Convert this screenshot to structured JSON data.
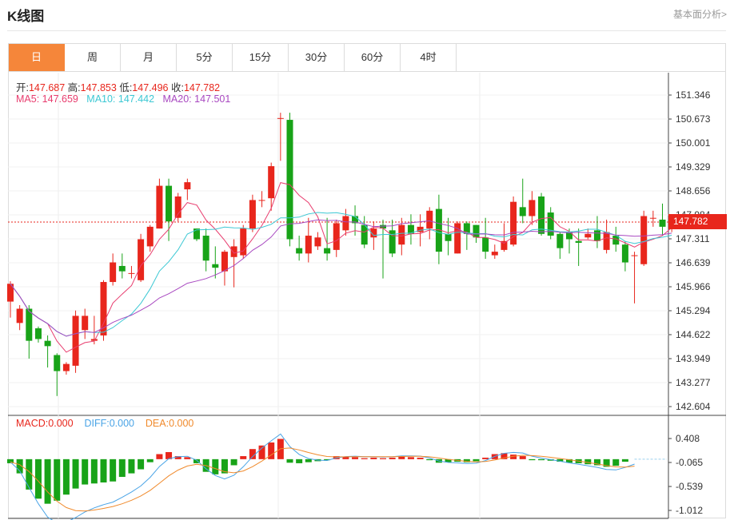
{
  "header": {
    "title": "K线图",
    "link": "基本面分析>"
  },
  "tabs": [
    {
      "label": "日",
      "active": true
    },
    {
      "label": "周",
      "active": false
    },
    {
      "label": "月",
      "active": false
    },
    {
      "label": "5分",
      "active": false
    },
    {
      "label": "15分",
      "active": false
    },
    {
      "label": "30分",
      "active": false
    },
    {
      "label": "60分",
      "active": false
    },
    {
      "label": "4时",
      "active": false
    }
  ],
  "ohlc_info": {
    "open_label": "开:",
    "open": "147.687",
    "high_label": "高:",
    "high": "147.853",
    "low_label": "低:",
    "low": "147.496",
    "close_label": "收:",
    "close": "147.782"
  },
  "ma_info": {
    "ma5_label": "MA5:",
    "ma5": "147.659",
    "ma10_label": "MA10:",
    "ma10": "147.442",
    "ma20_label": "MA20:",
    "ma20": "147.501"
  },
  "macd_info": {
    "macd_label": "MACD:",
    "macd": "0.000",
    "diff_label": "DIFF:",
    "diff": "0.000",
    "dea_label": "DEA:",
    "dea": "0.000"
  },
  "current_price": "147.782",
  "colors": {
    "up": "#e8261c",
    "down": "#18a318",
    "ma5": "#e83c6e",
    "ma10": "#3cc8d4",
    "ma20": "#a848c0",
    "diff": "#4aa4e6",
    "dea": "#f08a2c",
    "accent": "#f5863a"
  },
  "chart_data": {
    "type": "candlestick",
    "price_axis_ticks": [
      "151.346",
      "150.673",
      "150.001",
      "149.329",
      "148.656",
      "147.984",
      "147.311",
      "146.639",
      "145.966",
      "145.294",
      "144.622",
      "143.949",
      "143.277",
      "142.604"
    ],
    "macd_axis_ticks": [
      "0.408",
      "-0.065",
      "-0.539",
      "-1.012"
    ],
    "ylim": [
      142.604,
      151.346
    ],
    "macd_ylim": [
      -1.012,
      0.408
    ],
    "candles": [
      [
        145.55,
        146.05,
        145.1,
        146.12
      ],
      [
        144.95,
        145.35,
        144.75,
        145.45
      ],
      [
        145.35,
        144.45,
        143.95,
        145.45
      ],
      [
        144.8,
        144.5,
        144.4,
        144.85
      ],
      [
        144.45,
        144.3,
        143.7,
        144.6
      ],
      [
        144.05,
        143.6,
        142.9,
        144.1
      ],
      [
        143.6,
        143.8,
        143.5,
        143.85
      ],
      [
        143.75,
        145.15,
        143.55,
        145.3
      ],
      [
        144.75,
        145.15,
        144.5,
        145.35
      ],
      [
        144.45,
        144.5,
        144.35,
        145.15
      ],
      [
        144.6,
        146.1,
        144.45,
        146.15
      ],
      [
        146.1,
        146.65,
        146.0,
        146.9
      ],
      [
        146.55,
        146.4,
        146.2,
        146.9
      ],
      [
        146.35,
        146.35,
        146.2,
        146.55
      ],
      [
        146.15,
        147.3,
        146.1,
        147.45
      ],
      [
        147.1,
        147.65,
        146.95,
        147.7
      ],
      [
        147.6,
        148.8,
        147.6,
        149.0
      ],
      [
        148.8,
        147.8,
        147.25,
        149.0
      ],
      [
        147.9,
        148.5,
        147.8,
        148.6
      ],
      [
        148.7,
        148.9,
        148.4,
        149.0
      ],
      [
        147.6,
        147.3,
        147.25,
        147.6
      ],
      [
        147.4,
        146.7,
        146.4,
        147.6
      ],
      [
        146.6,
        146.5,
        146.2,
        147.1
      ],
      [
        146.4,
        146.95,
        146.0,
        147.0
      ],
      [
        146.8,
        147.1,
        145.95,
        147.3
      ],
      [
        146.85,
        147.6,
        146.75,
        147.7
      ],
      [
        147.6,
        148.4,
        147.5,
        148.55
      ],
      [
        148.4,
        148.4,
        148.2,
        148.65
      ],
      [
        148.45,
        149.35,
        148.1,
        149.45
      ],
      [
        150.7,
        150.7,
        149.5,
        150.85
      ],
      [
        150.65,
        147.3,
        147.1,
        150.85
      ],
      [
        147.05,
        146.9,
        146.7,
        147.4
      ],
      [
        146.9,
        147.4,
        146.65,
        147.9
      ],
      [
        147.1,
        147.35,
        147.0,
        147.5
      ],
      [
        147.05,
        146.9,
        146.7,
        147.9
      ],
      [
        147.0,
        147.75,
        146.8,
        147.85
      ],
      [
        147.55,
        147.95,
        147.4,
        148.15
      ],
      [
        147.95,
        147.75,
        147.4,
        148.25
      ],
      [
        147.7,
        147.15,
        147.05,
        147.95
      ],
      [
        147.35,
        147.6,
        147.0,
        147.8
      ],
      [
        147.7,
        147.6,
        146.2,
        147.85
      ],
      [
        147.55,
        146.9,
        146.8,
        147.85
      ],
      [
        147.15,
        147.7,
        146.85,
        147.9
      ],
      [
        147.7,
        147.45,
        147.15,
        148.0
      ],
      [
        147.5,
        147.65,
        147.1,
        148.0
      ],
      [
        147.6,
        148.1,
        147.3,
        148.2
      ],
      [
        148.15,
        146.95,
        146.6,
        148.55
      ],
      [
        147.45,
        147.25,
        146.85,
        147.9
      ],
      [
        146.9,
        147.75,
        146.9,
        147.8
      ],
      [
        147.75,
        147.45,
        147.0,
        147.8
      ],
      [
        147.7,
        147.35,
        147.2,
        147.7
      ],
      [
        147.35,
        146.95,
        146.75,
        147.9
      ],
      [
        146.85,
        146.95,
        146.75,
        147.15
      ],
      [
        147.0,
        147.25,
        146.95,
        147.75
      ],
      [
        147.15,
        148.35,
        147.1,
        148.5
      ],
      [
        148.2,
        147.95,
        147.75,
        149.0
      ],
      [
        147.95,
        148.4,
        147.7,
        148.65
      ],
      [
        148.5,
        147.45,
        147.4,
        148.6
      ],
      [
        148.05,
        147.4,
        147.3,
        148.2
      ],
      [
        147.45,
        147.05,
        146.75,
        147.5
      ],
      [
        147.5,
        147.3,
        146.9,
        147.6
      ],
      [
        147.25,
        147.2,
        146.55,
        147.6
      ],
      [
        147.35,
        147.45,
        147.3,
        147.6
      ],
      [
        147.55,
        147.25,
        147.05,
        147.95
      ],
      [
        147.0,
        147.5,
        146.9,
        147.85
      ],
      [
        147.4,
        147.15,
        146.95,
        147.65
      ],
      [
        147.15,
        146.65,
        146.4,
        147.25
      ],
      [
        146.85,
        146.85,
        145.5,
        146.95
      ],
      [
        146.6,
        147.95,
        146.55,
        148.1
      ],
      [
        147.9,
        147.9,
        147.65,
        148.1
      ],
      [
        147.85,
        147.65,
        147.4,
        148.3
      ],
      [
        147.69,
        147.78,
        147.5,
        147.85
      ]
    ],
    "macd_bars": [
      -0.08,
      -0.28,
      -0.6,
      -0.78,
      -0.88,
      -0.82,
      -0.7,
      -0.58,
      -0.5,
      -0.48,
      -0.46,
      -0.44,
      -0.35,
      -0.28,
      -0.2,
      -0.06,
      0.1,
      0.14,
      0.06,
      0.04,
      -0.08,
      -0.25,
      -0.3,
      -0.28,
      -0.12,
      0.06,
      0.2,
      0.27,
      0.33,
      0.4,
      -0.07,
      -0.08,
      -0.06,
      -0.04,
      -0.02,
      0.06,
      0.05,
      0.04,
      0.02,
      0.03,
      0.02,
      0.03,
      0.05,
      0.04,
      0.03,
      -0.02,
      -0.07,
      -0.06,
      -0.05,
      -0.06,
      -0.04,
      0.03,
      0.1,
      0.12,
      0.09,
      0.06,
      -0.02,
      -0.02,
      -0.03,
      -0.05,
      -0.07,
      -0.08,
      -0.1,
      -0.12,
      -0.15,
      -0.13,
      -0.05,
      0.0,
      0.0,
      0.0,
      0.0,
      0.0
    ]
  }
}
